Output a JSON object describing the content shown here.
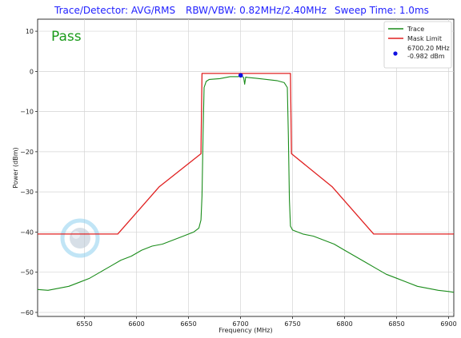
{
  "header": {
    "trace_detector": "Trace/Detector: AVG/RMS",
    "rbw_vbw": "RBW/VBW: 0.82MHz/2.40MHz",
    "sweep_time": "Sweep Time: 1.0ms"
  },
  "status": {
    "label": "Pass",
    "color": "#1a9a1a"
  },
  "watermark": {
    "icon": "brand-logo-icon"
  },
  "chart_data": {
    "type": "line",
    "xlabel": "Frequency (MHz)",
    "ylabel": "Power (dBm)",
    "xlim": [
      6505,
      6905
    ],
    "ylim": [
      -61,
      13
    ],
    "x_ticks": [
      6550,
      6600,
      6650,
      6700,
      6750,
      6800,
      6850,
      6900
    ],
    "y_ticks": [
      10,
      0,
      -10,
      -20,
      -30,
      -40,
      -50,
      -60
    ],
    "y_tick_labels": [
      "10",
      "0",
      "−10",
      "−20",
      "−30",
      "−40",
      "−50",
      "−60"
    ],
    "grid": true,
    "legend_position": "top-right",
    "series": [
      {
        "name": "Trace",
        "color": "#1a8c1a",
        "x": [
          6505,
          6515,
          6525,
          6535,
          6545,
          6555,
          6565,
          6575,
          6585,
          6595,
          6605,
          6615,
          6625,
          6635,
          6645,
          6655,
          6660,
          6662,
          6663,
          6664,
          6665,
          6667,
          6670,
          6680,
          6690,
          6698,
          6700.2,
          6703,
          6704,
          6705,
          6707,
          6715,
          6725,
          6735,
          6742,
          6745,
          6746,
          6747,
          6748,
          6750,
          6760,
          6770,
          6780,
          6790,
          6800,
          6810,
          6820,
          6830,
          6840,
          6850,
          6860,
          6870,
          6880,
          6890,
          6900,
          6905
        ],
        "y": [
          -54.3,
          -54.5,
          -54.0,
          -53.5,
          -52.5,
          -51.5,
          -50.0,
          -48.5,
          -47.0,
          -46.0,
          -44.5,
          -43.5,
          -43.0,
          -42.0,
          -41.0,
          -40.0,
          -39.0,
          -37.0,
          -31.0,
          -16.0,
          -4.0,
          -2.5,
          -2.0,
          -1.8,
          -1.3,
          -1.3,
          -0.982,
          -1.5,
          -3.2,
          -1.4,
          -1.5,
          -1.7,
          -2.0,
          -2.3,
          -2.8,
          -4.0,
          -16.0,
          -32.0,
          -38.5,
          -39.5,
          -40.5,
          -41.0,
          -42.0,
          -43.0,
          -44.5,
          -46.0,
          -47.5,
          -49.0,
          -50.5,
          -51.5,
          -52.5,
          -53.5,
          -54.0,
          -54.5,
          -54.8,
          -55.0
        ]
      },
      {
        "name": "Mask Limit",
        "color": "#e02020",
        "x": [
          6505,
          6582,
          6622,
          6662,
          6663,
          6748,
          6749,
          6788,
          6828,
          6905
        ],
        "y": [
          -40.5,
          -40.5,
          -28.7,
          -20.5,
          -0.5,
          -0.5,
          -20.5,
          -28.7,
          -40.5,
          -40.5
        ]
      }
    ],
    "marker": {
      "x": 6700.2,
      "y": -0.982,
      "color": "#1010e0",
      "label_line1": "6700.20 MHz",
      "label_line2": "-0.982 dBm"
    }
  }
}
